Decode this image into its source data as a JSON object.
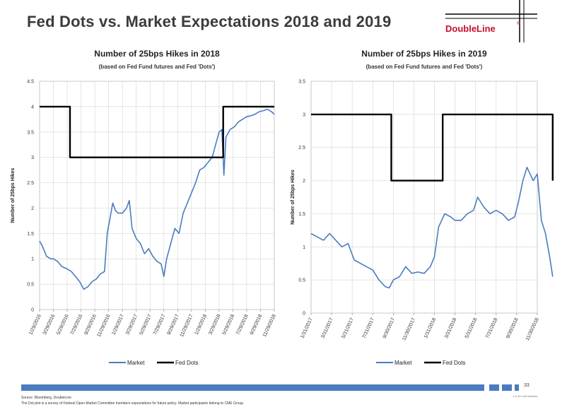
{
  "slide": {
    "title": "Fed Dots vs. Market Expectations 2018 and 2019",
    "logo_text": "DoubleLine",
    "logo_mark": "®",
    "page_number": "33",
    "tiny_label": "1-6-18 Just Markets",
    "source_line": "Source: Bloomberg, DoubleLine",
    "note_line": "The Dot plot is a survey of Federal Open Market Committee members  expectations for future policy. Market participants belong to CME Group."
  },
  "colors": {
    "market": "#4a7cc0",
    "fed_dots": "#000000",
    "logo_red": "#c8102e",
    "axis": "#888888",
    "grid": "#d9d9d9"
  },
  "chart_data": [
    {
      "type": "line",
      "title": "Number of 25bps Hikes in 2018",
      "subtitle": "(based on Fed Fund futures and Fed 'Dots')",
      "xlabel": "",
      "ylabel": "Number of 25bps Hikes",
      "ylim": [
        0,
        4.5
      ],
      "yticks": [
        "0",
        "0.5",
        "1",
        "1.5",
        "2",
        "2.5",
        "3",
        "3.5",
        "4",
        "4.5"
      ],
      "xticks": [
        "1/29/2016",
        "3/29/2016",
        "5/29/2016",
        "7/29/2016",
        "9/29/2016",
        "11/29/2016",
        "1/29/2017",
        "3/29/2017",
        "5/29/2017",
        "7/29/2017",
        "9/29/2017",
        "11/29/2017",
        "1/29/2018",
        "3/29/2018",
        "5/29/2018",
        "7/29/2018",
        "9/29/2018",
        "11/29/2018"
      ],
      "grid": true,
      "legend_position": "bottom-center",
      "series": [
        {
          "name": "Market",
          "points": [
            [
              0,
              1.35
            ],
            [
              0.2,
              1.25
            ],
            [
              0.5,
              1.05
            ],
            [
              0.8,
              1.0
            ],
            [
              1.0,
              1.0
            ],
            [
              1.3,
              0.95
            ],
            [
              1.6,
              0.85
            ],
            [
              2.0,
              0.8
            ],
            [
              2.3,
              0.75
            ],
            [
              2.6,
              0.65
            ],
            [
              2.9,
              0.55
            ],
            [
              3.2,
              0.4
            ],
            [
              3.5,
              0.45
            ],
            [
              3.8,
              0.55
            ],
            [
              4.1,
              0.6
            ],
            [
              4.4,
              0.7
            ],
            [
              4.7,
              0.75
            ],
            [
              4.9,
              1.5
            ],
            [
              5.1,
              1.8
            ],
            [
              5.3,
              2.1
            ],
            [
              5.5,
              1.95
            ],
            [
              5.7,
              1.9
            ],
            [
              6.0,
              1.9
            ],
            [
              6.3,
              2.0
            ],
            [
              6.5,
              2.15
            ],
            [
              6.7,
              1.6
            ],
            [
              7.0,
              1.4
            ],
            [
              7.3,
              1.3
            ],
            [
              7.6,
              1.1
            ],
            [
              7.9,
              1.2
            ],
            [
              8.2,
              1.05
            ],
            [
              8.5,
              0.95
            ],
            [
              8.8,
              0.9
            ],
            [
              9.0,
              0.65
            ],
            [
              9.2,
              1.0
            ],
            [
              9.5,
              1.3
            ],
            [
              9.8,
              1.6
            ],
            [
              10.1,
              1.5
            ],
            [
              10.4,
              1.9
            ],
            [
              10.7,
              2.1
            ],
            [
              11.0,
              2.3
            ],
            [
              11.3,
              2.5
            ],
            [
              11.6,
              2.75
            ],
            [
              11.9,
              2.8
            ],
            [
              12.2,
              2.9
            ],
            [
              12.5,
              3.0
            ],
            [
              12.8,
              3.3
            ],
            [
              13.0,
              3.5
            ],
            [
              13.2,
              3.55
            ],
            [
              13.35,
              2.65
            ],
            [
              13.5,
              3.4
            ],
            [
              13.8,
              3.55
            ],
            [
              14.1,
              3.6
            ],
            [
              14.4,
              3.7
            ],
            [
              14.7,
              3.75
            ],
            [
              15.0,
              3.8
            ],
            [
              15.3,
              3.82
            ],
            [
              15.6,
              3.85
            ],
            [
              15.9,
              3.9
            ],
            [
              16.2,
              3.92
            ],
            [
              16.5,
              3.95
            ],
            [
              16.8,
              3.9
            ],
            [
              17.0,
              3.85
            ]
          ]
        },
        {
          "name": "Fed Dots",
          "points": [
            [
              0,
              4
            ],
            [
              2.2,
              4
            ],
            [
              2.2,
              3
            ],
            [
              13.3,
              3
            ],
            [
              13.3,
              4
            ],
            [
              17.0,
              4
            ]
          ]
        }
      ]
    },
    {
      "type": "line",
      "title": "Number of 25bps Hikes in 2019",
      "subtitle": "(based on Fed Fund futures and Fed 'Dots')",
      "xlabel": "",
      "ylabel": "Number of 25bps Hikes",
      "ylim": [
        0,
        3.5
      ],
      "yticks": [
        "0",
        "0.5",
        "1",
        "1.5",
        "2",
        "2.5",
        "3",
        "3.5"
      ],
      "xticks": [
        "1/31/2017",
        "3/31/2017",
        "5/31/2017",
        "7/31/2017",
        "9/30/2017",
        "11/30/2017",
        "1/31/2018",
        "3/31/2018",
        "5/31/2018",
        "7/31/2018",
        "9/30/2018",
        "11/30/2018"
      ],
      "grid": true,
      "legend_position": "bottom-center",
      "series": [
        {
          "name": "Market",
          "points": [
            [
              0,
              1.2
            ],
            [
              0.3,
              1.15
            ],
            [
              0.6,
              1.1
            ],
            [
              0.9,
              1.2
            ],
            [
              1.2,
              1.1
            ],
            [
              1.5,
              1.0
            ],
            [
              1.8,
              1.05
            ],
            [
              2.1,
              0.8
            ],
            [
              2.4,
              0.75
            ],
            [
              2.7,
              0.7
            ],
            [
              3.0,
              0.65
            ],
            [
              3.3,
              0.5
            ],
            [
              3.6,
              0.4
            ],
            [
              3.8,
              0.38
            ],
            [
              4.0,
              0.5
            ],
            [
              4.3,
              0.55
            ],
            [
              4.6,
              0.7
            ],
            [
              4.9,
              0.6
            ],
            [
              5.2,
              0.62
            ],
            [
              5.5,
              0.6
            ],
            [
              5.8,
              0.7
            ],
            [
              6.0,
              0.85
            ],
            [
              6.2,
              1.3
            ],
            [
              6.5,
              1.5
            ],
            [
              6.8,
              1.45
            ],
            [
              7.0,
              1.4
            ],
            [
              7.3,
              1.4
            ],
            [
              7.6,
              1.5
            ],
            [
              7.9,
              1.55
            ],
            [
              8.1,
              1.75
            ],
            [
              8.4,
              1.6
            ],
            [
              8.7,
              1.5
            ],
            [
              9.0,
              1.55
            ],
            [
              9.3,
              1.5
            ],
            [
              9.6,
              1.4
            ],
            [
              9.9,
              1.45
            ],
            [
              10.1,
              1.7
            ],
            [
              10.3,
              2.0
            ],
            [
              10.5,
              2.2
            ],
            [
              10.8,
              2.0
            ],
            [
              11.0,
              2.1
            ],
            [
              11.2,
              1.4
            ],
            [
              11.4,
              1.2
            ],
            [
              11.6,
              0.85
            ],
            [
              11.75,
              0.55
            ]
          ]
        },
        {
          "name": "Fed Dots",
          "points": [
            [
              0,
              3
            ],
            [
              3.9,
              3
            ],
            [
              3.9,
              2
            ],
            [
              6.4,
              2
            ],
            [
              6.4,
              3
            ],
            [
              11.75,
              3
            ],
            [
              11.75,
              2
            ]
          ]
        }
      ]
    }
  ]
}
